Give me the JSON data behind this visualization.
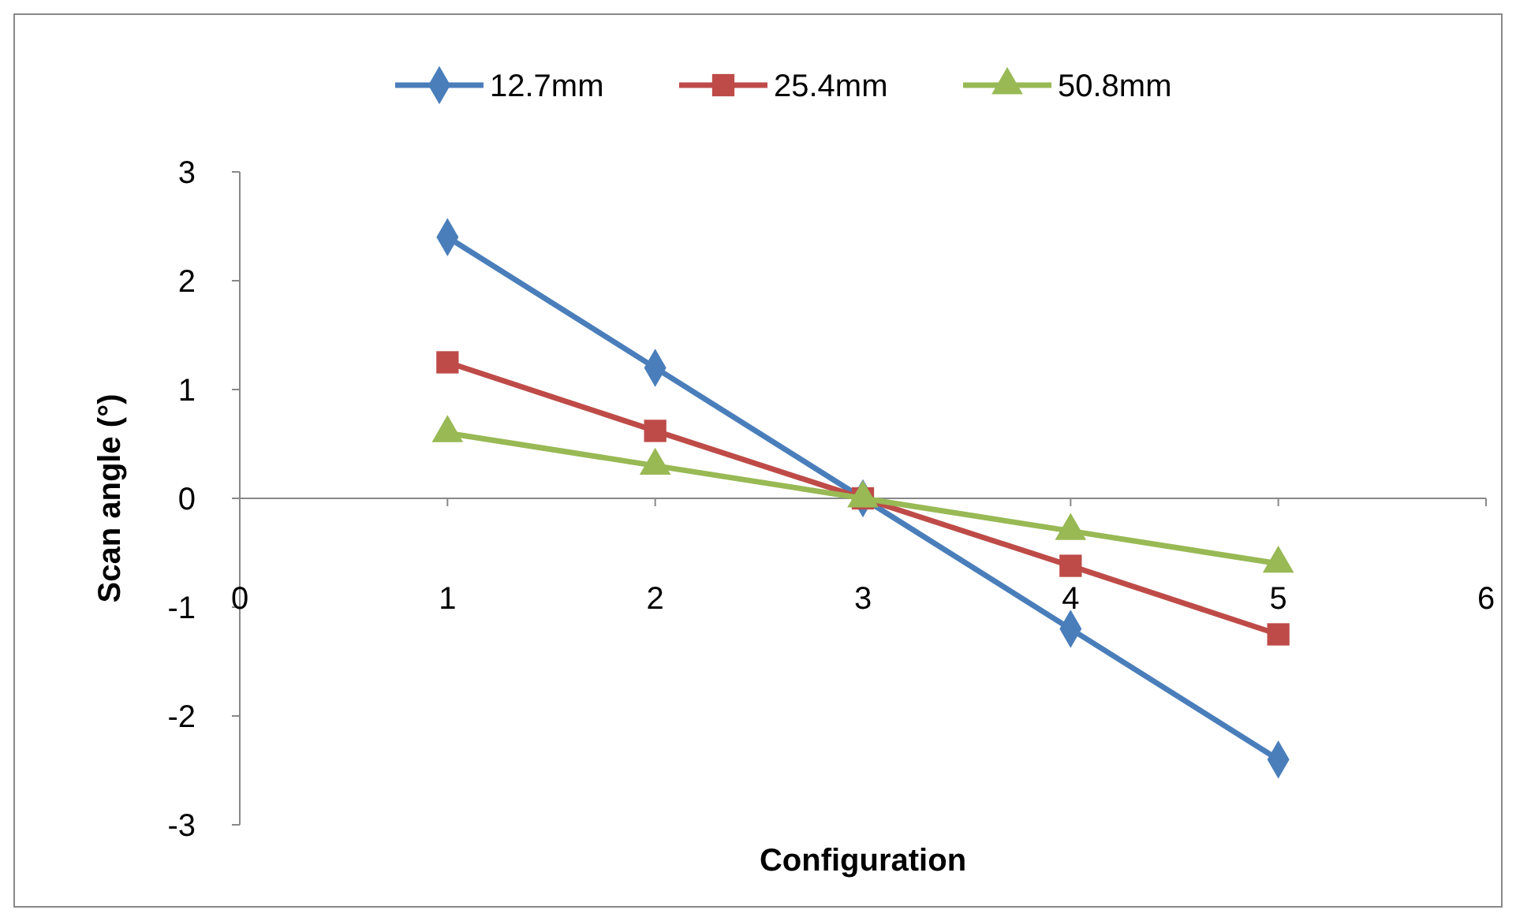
{
  "chart_data": {
    "type": "line",
    "xlabel": "Configuration",
    "ylabel": "Scan angle (°)",
    "xlim": [
      0,
      6
    ],
    "xticks": [
      0,
      1,
      2,
      3,
      4,
      5,
      6
    ],
    "ylim": [
      -3,
      3
    ],
    "yticks": [
      -3,
      -2,
      -1,
      0,
      1,
      2,
      3
    ],
    "x": [
      1,
      2,
      3,
      4,
      5
    ],
    "legend": "top",
    "line_style": "solid",
    "series": [
      {
        "name": "12.7mm",
        "color": "#4a7ebb",
        "marker": "diamond",
        "values": [
          2.4,
          1.2,
          0,
          -1.2,
          -2.4
        ]
      },
      {
        "name": "25.4mm",
        "color": "#be4b48",
        "marker": "square",
        "values": [
          1.25,
          0.62,
          0,
          -0.62,
          -1.25
        ]
      },
      {
        "name": "50.8mm",
        "color": "#98b954",
        "marker": "triangle",
        "values": [
          0.6,
          0.3,
          0,
          -0.3,
          -0.6
        ]
      }
    ]
  }
}
